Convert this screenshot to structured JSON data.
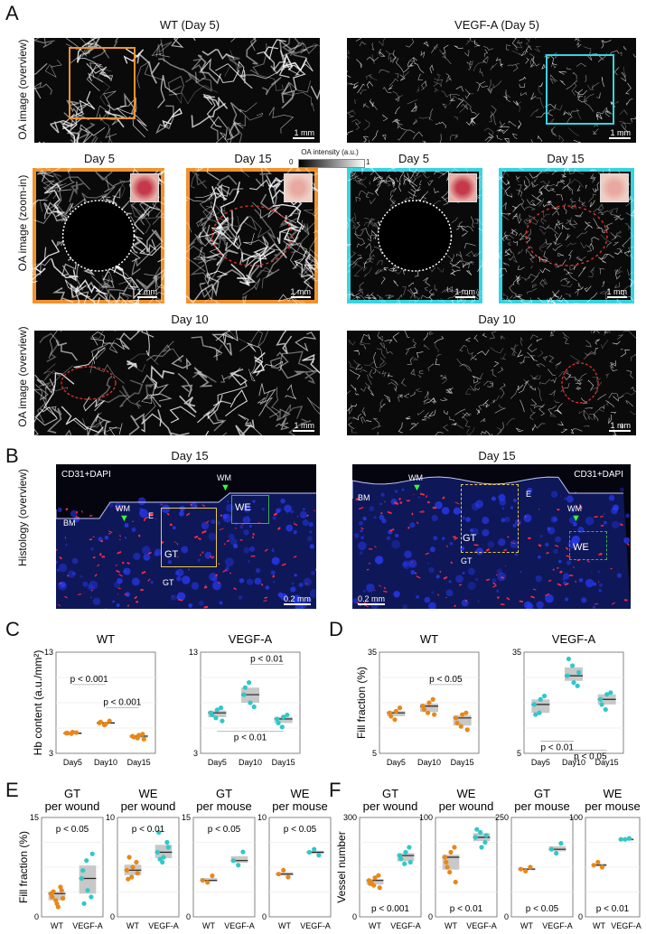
{
  "panels": {
    "A": "A",
    "B": "B",
    "C": "C",
    "D": "D",
    "E": "E",
    "F": "F"
  },
  "row_a": {
    "wt_title": "WT (Day 5)",
    "vegf_title": "VEGF-A (Day 5)",
    "label_overview": "OA image (overview)",
    "label_zoom": "OA image (zoom-in)",
    "scale": "1 mm",
    "colorbar_label": "OA intensity (a.u.)",
    "colorbar_min": "0",
    "colorbar_max": "1",
    "zoom_titles": [
      "Day 5",
      "Day 15",
      "Day 5",
      "Day 15"
    ],
    "day10_title": "Day 10"
  },
  "row_b": {
    "title": "Day 15",
    "label": "Histology (overview)",
    "stain": "CD31+DAPI",
    "scale": "0.2 mm",
    "labels": {
      "wm": "WM",
      "bm": "BM",
      "e": "E",
      "gt": "GT",
      "we": "WE"
    }
  },
  "chart_data": [
    {
      "type": "scatter",
      "panel": "C",
      "title": "WT",
      "ylabel": "Hb content (a.u./mm²)",
      "ylim": [
        3,
        13
      ],
      "yticks": [
        "3",
        "13"
      ],
      "categories": [
        "Day5",
        "Day10",
        "Day15"
      ],
      "medians": [
        5.0,
        6.0,
        4.7
      ],
      "points": [
        [
          5.0,
          4.95,
          5.05,
          5.0,
          5.1
        ],
        [
          6.0,
          5.8,
          6.2,
          6.1,
          5.9
        ],
        [
          4.7,
          4.5,
          4.9,
          4.6,
          4.8,
          4.4
        ]
      ],
      "annotations": [
        {
          "text": "p < 0.001",
          "from": "Day5",
          "to": "Day10"
        },
        {
          "text": "p < 0.001",
          "from": "Day10",
          "to": "Day15"
        }
      ],
      "color": "#e8881a"
    },
    {
      "type": "scatter",
      "panel": "C",
      "title": "VEGF-A",
      "ylim": [
        3,
        13
      ],
      "yticks": [
        "3",
        "13"
      ],
      "categories": [
        "Day5",
        "Day10",
        "Day15"
      ],
      "medians": [
        7.0,
        8.8,
        6.4
      ],
      "points": [
        [
          7.0,
          6.5,
          7.5,
          6.8,
          7.3,
          6.2
        ],
        [
          8.8,
          10.0,
          7.6,
          9.5,
          8.0
        ],
        [
          6.4,
          5.6,
          6.8,
          6.0,
          6.6
        ]
      ],
      "annotations": [
        {
          "text": "p < 0.01",
          "from": "Day10",
          "to": "Day15"
        },
        {
          "text": "p < 0.01",
          "from": "Day5",
          "to": "Day15"
        }
      ],
      "color": "#30c8c8"
    },
    {
      "type": "scatter",
      "panel": "D",
      "title": "WT",
      "ylabel": "Fill fraction (%)",
      "ylim": [
        5,
        35
      ],
      "yticks": [
        "5",
        "35"
      ],
      "categories": [
        "Day5",
        "Day10",
        "Day15"
      ],
      "medians": [
        17,
        19,
        15.5
      ],
      "points": [
        [
          17,
          15,
          18.5,
          16,
          17.5
        ],
        [
          19,
          17,
          21,
          18,
          20,
          16.5
        ],
        [
          15.5,
          13,
          17,
          14,
          16.5,
          12
        ]
      ],
      "annotations": [
        {
          "text": "p < 0.05",
          "from": "Day10",
          "to": "Day15"
        }
      ],
      "color": "#e8881a"
    },
    {
      "type": "scatter",
      "panel": "D",
      "title": "VEGF-A",
      "ylim": [
        5,
        35
      ],
      "yticks": [
        "5",
        "35"
      ],
      "categories": [
        "Day5",
        "Day10",
        "Day15"
      ],
      "medians": [
        19.5,
        28,
        21
      ],
      "points": [
        [
          19.5,
          17,
          22,
          16.5,
          21
        ],
        [
          28,
          31,
          25,
          33,
          26,
          29
        ],
        [
          21,
          18,
          23,
          19.5,
          22.5
        ]
      ],
      "annotations": [
        {
          "text": "p < 0.01",
          "from": "Day5",
          "to": "Day10"
        },
        {
          "text": "p < 0.05",
          "from": "Day10",
          "to": "Day15"
        }
      ],
      "color": "#30c8c8"
    },
    {
      "type": "scatter",
      "panel": "E",
      "title": "GT per wound",
      "ylabel": "Fill fraction (%)",
      "ylim": [
        0,
        15
      ],
      "yticks": [
        "0",
        "15"
      ],
      "categories": [
        "WT",
        "VEGF-A"
      ],
      "medians": [
        3.5,
        5.8
      ],
      "points": [
        [
          3.5,
          2.5,
          4.5,
          3,
          2,
          4,
          3.8,
          1.5,
          2.8
        ],
        [
          5.8,
          8.5,
          3,
          7,
          4,
          9.5,
          2
        ]
      ],
      "annotations": [
        {
          "text": "p < 0.05"
        }
      ]
    },
    {
      "type": "scatter",
      "panel": "E",
      "title": "WE per wound",
      "ylim": [
        0,
        10
      ],
      "yticks": [
        "0",
        "10"
      ],
      "categories": [
        "WT",
        "VEGF-A"
      ],
      "medians": [
        4.7,
        6.5
      ],
      "points": [
        [
          4.7,
          4,
          5.5,
          3.8,
          5,
          4.4,
          6
        ],
        [
          6.5,
          5.5,
          7.5,
          8.5,
          6,
          7,
          5.8
        ]
      ],
      "annotations": [
        {
          "text": "p < 0.01"
        }
      ]
    },
    {
      "type": "scatter",
      "panel": "E",
      "title": "GT per mouse",
      "ylim": [
        0,
        15
      ],
      "yticks": [
        "0",
        "15"
      ],
      "categories": [
        "WT",
        "VEGF-A"
      ],
      "medians": [
        5.5,
        8.5
      ],
      "points": [
        [
          5.5,
          5.2,
          6.2
        ],
        [
          8.5,
          7.8,
          9.8
        ]
      ],
      "annotations": [
        {
          "text": "p < 0.05"
        }
      ]
    },
    {
      "type": "scatter",
      "panel": "E",
      "title": "WE per mouse",
      "ylim": [
        0,
        10
      ],
      "yticks": [
        "0",
        "10"
      ],
      "categories": [
        "WT",
        "VEGF-A"
      ],
      "medians": [
        4.3,
        6.5
      ],
      "points": [
        [
          4.3,
          4.7,
          4.0
        ],
        [
          6.5,
          6.8,
          6.2
        ]
      ],
      "annotations": [
        {
          "text": "p < 0.05"
        }
      ]
    },
    {
      "type": "scatter",
      "panel": "F",
      "title": "GT per wound",
      "ylabel": "Vessel number",
      "ylim": [
        0,
        300
      ],
      "yticks": [
        "0",
        "300"
      ],
      "categories": [
        "WT",
        "VEGF-A"
      ],
      "medians": [
        110,
        185
      ],
      "points": [
        [
          110,
          95,
          125,
          100,
          118,
          88,
          105
        ],
        [
          185,
          160,
          210,
          175,
          195,
          165
        ]
      ],
      "annotations": [
        {
          "text": "p < 0.001"
        }
      ]
    },
    {
      "type": "scatter",
      "panel": "F",
      "title": "WE per wound",
      "ylim": [
        0,
        100
      ],
      "yticks": [
        "0",
        "100"
      ],
      "categories": [
        "WT",
        "VEGF-A"
      ],
      "medians": [
        60,
        80
      ],
      "points": [
        [
          60,
          45,
          70,
          55,
          65,
          35,
          50
        ],
        [
          80,
          85,
          75,
          88,
          70,
          82
        ]
      ],
      "annotations": [
        {
          "text": "p < 0.01"
        }
      ]
    },
    {
      "type": "scatter",
      "panel": "F",
      "title": "GT per mouse",
      "ylim": [
        0,
        250
      ],
      "yticks": [
        "0",
        "250"
      ],
      "categories": [
        "WT",
        "VEGF-A"
      ],
      "medians": [
        120,
        170
      ],
      "points": [
        [
          120,
          115,
          125
        ],
        [
          170,
          160,
          185
        ]
      ],
      "annotations": [
        {
          "text": "p < 0.05"
        }
      ]
    },
    {
      "type": "scatter",
      "panel": "F",
      "title": "WE per mouse",
      "ylim": [
        0,
        100
      ],
      "yticks": [
        "0",
        "100"
      ],
      "categories": [
        "WT",
        "VEGF-A"
      ],
      "medians": [
        52,
        78
      ],
      "points": [
        [
          52,
          55,
          50
        ],
        [
          78,
          78,
          79
        ]
      ],
      "annotations": [
        {
          "text": "p < 0.01"
        }
      ]
    }
  ],
  "colors": {
    "wt": "#e8881a",
    "vegf": "#30c8c8",
    "box": "#c8c8c8",
    "orange_frame": "#f0922e",
    "cyan_frame": "#38d3e0"
  }
}
